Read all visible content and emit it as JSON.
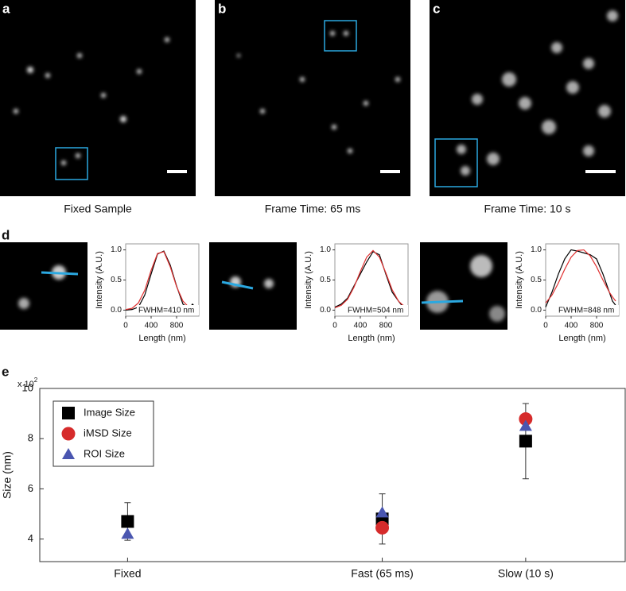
{
  "figure": {
    "panel_labels": [
      "a",
      "b",
      "c",
      "d",
      "e"
    ],
    "captions": [
      "Fixed Sample",
      "Frame Time: 65 ms",
      "Frame Time: 10 s"
    ]
  },
  "chart_data": [
    {
      "type": "line",
      "xlabel": "Length (nm)",
      "ylabel": "Intensity (A.U.)",
      "annotation": "FWHM=410 nm",
      "x": [
        0,
        100,
        200,
        300,
        400,
        500,
        600,
        700,
        800,
        900,
        1000,
        1050,
        1100
      ],
      "series": [
        {
          "color": "#000000",
          "values": [
            0,
            0.01,
            0.05,
            0.25,
            0.6,
            0.93,
            0.98,
            0.75,
            0.4,
            0.1,
            0.03,
            0.1,
            0.04
          ]
        },
        {
          "color": "#e03030",
          "values": [
            0.01,
            0.03,
            0.12,
            0.33,
            0.66,
            0.94,
            0.97,
            0.72,
            0.39,
            0.15,
            0.04,
            0.02,
            0.01
          ]
        }
      ],
      "xlim": [
        0,
        1150
      ],
      "xticks": [
        0,
        400,
        800
      ],
      "ylim": [
        -0.1,
        1.1
      ],
      "yticks": [
        {
          "value": 0,
          "label": "0.0"
        },
        0.5,
        {
          "value": 1,
          "label": "1.0"
        }
      ]
    },
    {
      "type": "line",
      "xlabel": "Length (nm)",
      "ylabel": "Intensity (A.U.)",
      "annotation": "FWHM=504 nm",
      "x": [
        0,
        100,
        200,
        300,
        400,
        500,
        600,
        700,
        800,
        900,
        1000,
        1050,
        1100
      ],
      "series": [
        {
          "color": "#000000",
          "values": [
            0.05,
            0.1,
            0.2,
            0.4,
            0.6,
            0.8,
            0.97,
            0.92,
            0.6,
            0.3,
            0.15,
            0.08,
            0.05
          ]
        },
        {
          "color": "#e03030",
          "values": [
            0.04,
            0.08,
            0.18,
            0.38,
            0.64,
            0.88,
            0.99,
            0.88,
            0.62,
            0.34,
            0.15,
            0.1,
            0.06
          ]
        }
      ],
      "xlim": [
        0,
        1150
      ],
      "xticks": [
        0,
        400,
        800
      ],
      "ylim": [
        -0.1,
        1.1
      ],
      "yticks": [
        {
          "value": 0,
          "label": "0.0"
        },
        0.5,
        {
          "value": 1,
          "label": "1.0"
        }
      ]
    },
    {
      "type": "line",
      "xlabel": "Length (nm)",
      "ylabel": "Intensity (A.U.)",
      "annotation": "FWHM=848 nm",
      "x": [
        0,
        100,
        200,
        300,
        400,
        500,
        600,
        700,
        800,
        900,
        1000,
        1050,
        1100
      ],
      "series": [
        {
          "color": "#000000",
          "values": [
            0.05,
            0.3,
            0.6,
            0.85,
            1.0,
            0.98,
            0.95,
            0.92,
            0.85,
            0.6,
            0.3,
            0.15,
            0.08
          ]
        },
        {
          "color": "#e03030",
          "values": [
            0.12,
            0.25,
            0.45,
            0.68,
            0.88,
            0.99,
            1.0,
            0.9,
            0.72,
            0.5,
            0.3,
            0.22,
            0.15
          ]
        }
      ],
      "xlim": [
        0,
        1150
      ],
      "xticks": [
        0,
        400,
        800
      ],
      "ylim": [
        -0.1,
        1.1
      ],
      "yticks": [
        {
          "value": 0,
          "label": "0.0"
        },
        0.5,
        {
          "value": 1,
          "label": "1.0"
        }
      ]
    },
    {
      "type": "scatter",
      "ylabel": "Size (nm)",
      "axis_multiplier": "x 10",
      "axis_multiplier_exponent": "2",
      "categories": [
        "Fixed",
        "Fast (65 ms)",
        "Slow (10 s)"
      ],
      "series": [
        {
          "name": "Image Size",
          "color": "#000000",
          "marker": "square",
          "values": [
            4.7,
            4.8,
            7.9
          ],
          "errors": [
            0.75,
            1.0,
            1.5
          ]
        },
        {
          "name": "iMSD Size",
          "color": "#d62b2b",
          "marker": "circle",
          "values": [
            null,
            4.45,
            8.78
          ]
        },
        {
          "name": "ROI Size",
          "color": "#4a56b0",
          "marker": "triangle",
          "values": [
            4.2,
            5.05,
            8.5
          ]
        }
      ],
      "ylim": [
        3.1,
        10
      ],
      "yticks": [
        4,
        6,
        8,
        10
      ],
      "legend": "upper left"
    }
  ]
}
